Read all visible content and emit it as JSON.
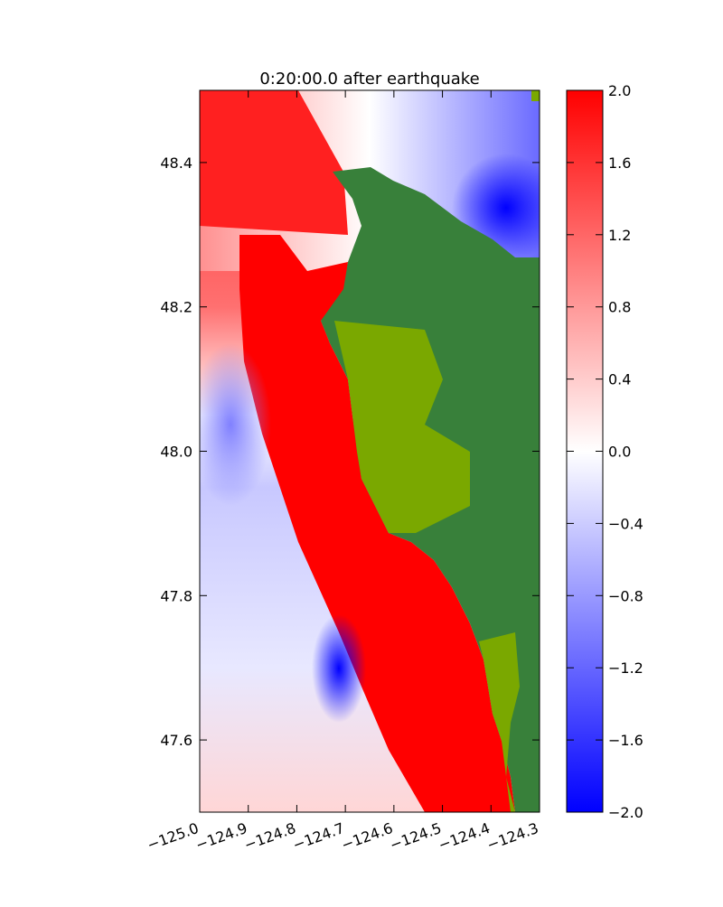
{
  "chart_data": {
    "type": "heatmap",
    "title": "0:20:00.0 after earthquake",
    "xlim": [
      -125.0,
      -124.3
    ],
    "xticks": [
      {
        "value": -125.0,
        "label": "−125.0"
      },
      {
        "value": -124.9,
        "label": "−124.9"
      },
      {
        "value": -124.8,
        "label": "−124.8"
      },
      {
        "value": -124.7,
        "label": "−124.7"
      },
      {
        "value": -124.6,
        "label": "−124.6"
      },
      {
        "value": -124.5,
        "label": "−124.5"
      },
      {
        "value": -124.4,
        "label": "−124.4"
      },
      {
        "value": -124.3,
        "label": "−124.3"
      }
    ],
    "ylim": [
      47.5,
      48.5
    ],
    "yticks": [
      47.6,
      47.8,
      {
        "value": 48.0,
        "label": "48.0"
      },
      48.2,
      48.4
    ],
    "colorscale": [
      "#0000ff",
      "#ffffff",
      "#ff0000"
    ],
    "clim": [
      -2.0,
      2.0
    ],
    "cticks": [
      {
        "value": -2.0,
        "label": "−2.0"
      },
      {
        "value": -1.6,
        "label": "−1.6"
      },
      {
        "value": -1.2,
        "label": "−1.2"
      },
      {
        "value": -0.8,
        "label": "−0.8"
      },
      {
        "value": -0.4,
        "label": "−0.4"
      },
      {
        "value": 0.0,
        "label": "0.0"
      },
      0.4,
      0.8,
      1.2,
      1.6,
      {
        "value": 2.0,
        "label": "2.0"
      }
    ]
  }
}
